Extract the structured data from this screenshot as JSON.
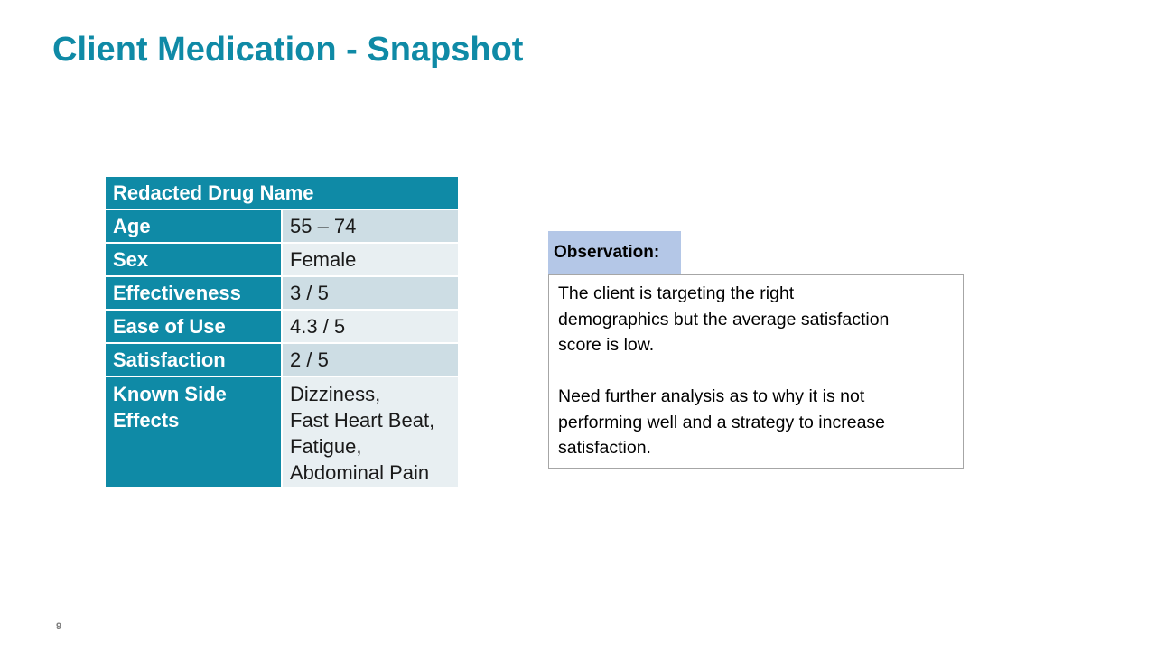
{
  "slide": {
    "title": "Client Medication - Snapshot",
    "page_number": "9"
  },
  "colors": {
    "title": "#0f8aa6",
    "table_header": "#0f8aa6",
    "row_dark": "#cddde4",
    "row_light": "#e8eff2",
    "observation_label_bg": "#b4c7e7"
  },
  "table": {
    "header": "Redacted Drug Name",
    "rows": [
      {
        "label": "Age",
        "value": "55 – 74"
      },
      {
        "label": "Sex",
        "value": "Female"
      },
      {
        "label": "Effectiveness",
        "value": "3 / 5"
      },
      {
        "label": "Ease of Use",
        "value": "4.3 / 5"
      },
      {
        "label": "Satisfaction",
        "value": "2 / 5"
      }
    ],
    "side_effects": {
      "label_lines": [
        "Known Side",
        "Effects"
      ],
      "value_lines": [
        "Dizziness,",
        "Fast Heart Beat,",
        "Fatigue,",
        "Abdominal Pain"
      ]
    }
  },
  "observation": {
    "label": "Observation:",
    "paragraph_1_lines": [
      "The client is targeting the right",
      "demographics but the average satisfaction",
      "score is low."
    ],
    "paragraph_2_lines": [
      "Need further analysis as to why it is not",
      "performing well and a strategy to increase",
      "satisfaction."
    ]
  }
}
